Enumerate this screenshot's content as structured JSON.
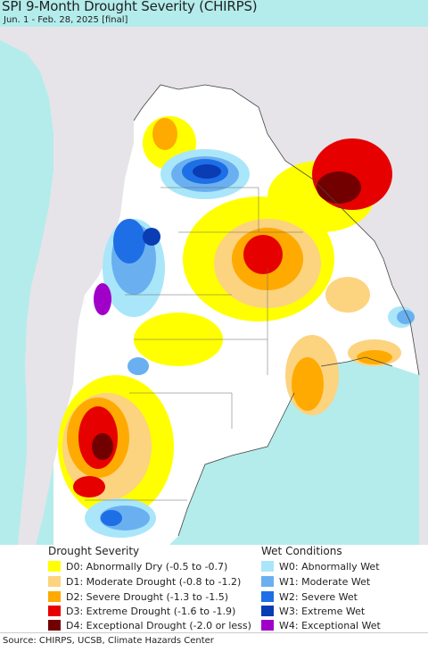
{
  "title": "SPI 9-Month Drought Severity (CHIRPS)",
  "subtitle": "Jun. 1 - Feb. 28, 2025 [final]",
  "legend": {
    "drought_title": "Drought Severity",
    "wet_title": "Wet Conditions",
    "drought": [
      {
        "label": "D0: Abnormally Dry (-0.5 to -0.7)",
        "color": "#ffff00"
      },
      {
        "label": "D1: Moderate Drought (-0.8 to -1.2)",
        "color": "#fcd37f"
      },
      {
        "label": "D2: Severe Drought (-1.3 to -1.5)",
        "color": "#ffaa00"
      },
      {
        "label": "D3: Extreme Drought (-1.6 to -1.9)",
        "color": "#e60000"
      },
      {
        "label": "D4: Exceptional Drought (-2.0 or less)",
        "color": "#730000"
      }
    ],
    "wet": [
      {
        "label": "W0: Abnormally Wet",
        "color": "#aae6fa"
      },
      {
        "label": "W1: Moderate Wet",
        "color": "#6ab0f0"
      },
      {
        "label": "W2: Severe Wet",
        "color": "#1e6ee6"
      },
      {
        "label": "W3: Extreme Wet",
        "color": "#0a3cb4"
      },
      {
        "label": "W4: Exceptional Wet",
        "color": "#a000c8"
      }
    ]
  },
  "map_colors": {
    "ocean": "#b4ecec",
    "outside_land": "#e6e4e8",
    "normal": "#ffffff",
    "border": "#444444"
  },
  "source": "Source: CHIRPS, UCSB, Climate Hazards Center"
}
